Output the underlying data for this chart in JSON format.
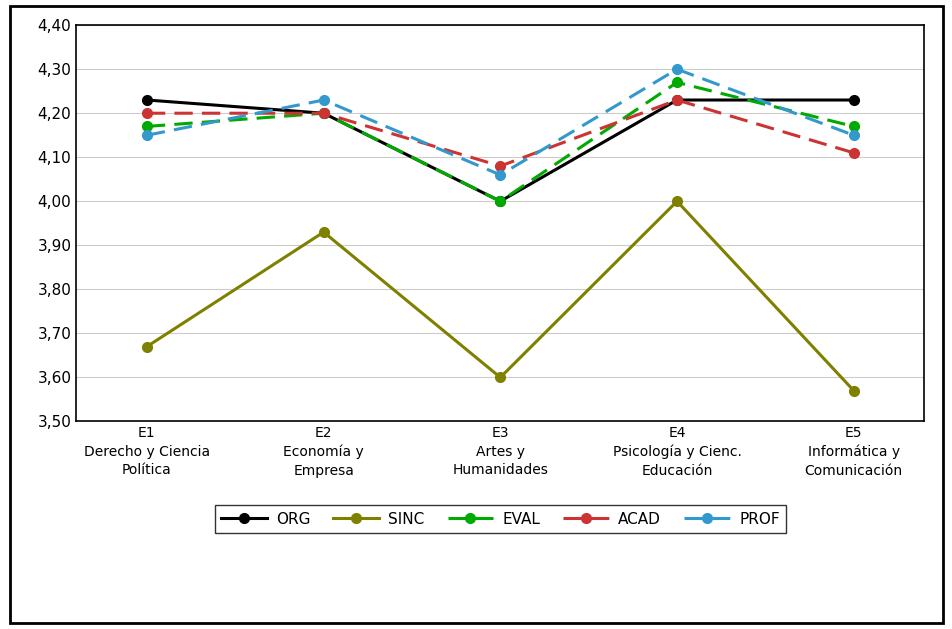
{
  "categories": [
    "E1\nDerecho y Ciencia\nPolítica",
    "E2\nEconomía y\nEmpresa",
    "E3\nArtes y\nHumanidades",
    "E4\nPsicología y Cienc.\nEducación",
    "E5\nInformática y\nComunicación"
  ],
  "series": {
    "ORG": [
      4.23,
      4.2,
      4.0,
      4.23,
      4.23
    ],
    "SINC": [
      3.67,
      3.93,
      3.6,
      4.0,
      3.57
    ],
    "EVAL": [
      4.17,
      4.2,
      4.0,
      4.27,
      4.17
    ],
    "ACAD": [
      4.2,
      4.2,
      4.08,
      4.23,
      4.11
    ],
    "PROF": [
      4.15,
      4.23,
      4.06,
      4.3,
      4.15
    ]
  },
  "colors": {
    "ORG": "#000000",
    "SINC": "#808000",
    "EVAL": "#00AA00",
    "ACAD": "#CC3333",
    "PROF": "#3399CC"
  },
  "linestyles": {
    "ORG": "solid",
    "SINC": "solid",
    "EVAL": "dashed",
    "ACAD": "dashed",
    "PROF": "dashed"
  },
  "markers": {
    "ORG": "o",
    "SINC": "o",
    "EVAL": "o",
    "ACAD": "o",
    "PROF": "o"
  },
  "series_order": [
    "ORG",
    "SINC",
    "EVAL",
    "ACAD",
    "PROF"
  ],
  "ylim": [
    3.5,
    4.4
  ],
  "yticks": [
    3.5,
    3.6,
    3.7,
    3.8,
    3.9,
    4.0,
    4.1,
    4.2,
    4.3,
    4.4
  ],
  "background_color": "#ffffff",
  "grid_color": "#cccccc"
}
